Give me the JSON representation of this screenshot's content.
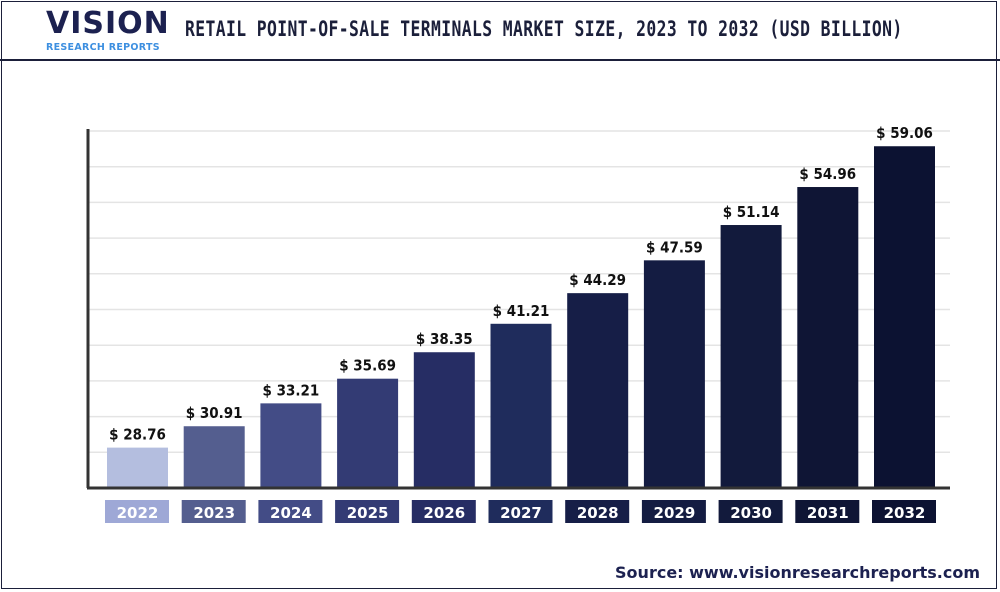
{
  "header": {
    "logo_main": "VISION",
    "logo_sub": "RESEARCH REPORTS",
    "title": "RETAIL POINT-OF-SALE TERMINALS MARKET SIZE, 2023 TO 2032 (USD BILLION)"
  },
  "source": "Source: www.visionresearchreports.com",
  "chart_data": {
    "type": "bar",
    "title": "RETAIL POINT-OF-SALE TERMINALS MARKET SIZE, 2023 TO 2032 (USD BILLION)",
    "categories": [
      "2022",
      "2023",
      "2024",
      "2025",
      "2026",
      "2027",
      "2028",
      "2029",
      "2030",
      "2031",
      "2032"
    ],
    "values": [
      28.76,
      30.91,
      33.21,
      35.69,
      38.35,
      41.21,
      44.29,
      47.59,
      51.14,
      54.96,
      59.06
    ],
    "labels": [
      "$ 28.76",
      "$ 30.91",
      "$ 33.21",
      "$ 35.69",
      "$ 38.35",
      "$ 41.21",
      "$ 44.29",
      "$ 47.59",
      "$ 51.14",
      "$ 54.96",
      "$ 59.06"
    ],
    "colors": [
      "#b4bedf",
      "#545e8f",
      "#434c86",
      "#333b74",
      "#262d64",
      "#1f2c5c",
      "#161e47",
      "#141c42",
      "#121a3c",
      "#0f1535",
      "#0c1232"
    ],
    "label_box_colors": [
      "#9ea8d6",
      "#545e8f",
      "#434c86",
      "#333b74",
      "#262d64",
      "#1f2c5c",
      "#161e47",
      "#141c42",
      "#121a3c",
      "#0f1535",
      "#0c1232"
    ],
    "xlabel": "",
    "ylabel": "",
    "ylim": [
      24.7,
      62
    ],
    "grid": true,
    "legend": "none"
  }
}
